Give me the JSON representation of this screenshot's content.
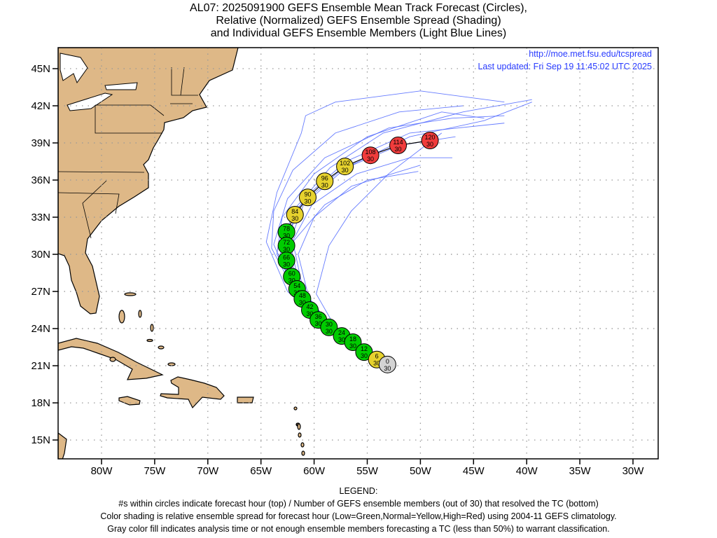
{
  "title": {
    "line1": "AL07: 2025091900 GEFS Ensemble Mean Track Forecast (Circles),",
    "line2": "Relative (Normalized) GEFS Ensemble Spread (Shading)",
    "line3": "and Individual GEFS Ensemble Members (Light Blue Lines)"
  },
  "info": {
    "url": "http://moe.met.fsu.edu/tcspread",
    "updated": "Last updated: Fri Sep 19 11:45:02 UTC 2025"
  },
  "legend": {
    "heading": "LEGEND:",
    "line1": "#s within circles indicate forecast hour (top) / Number of GEFS ensemble members (out of 30) that resolved the TC (bottom)",
    "line2": "Color shading is relative ensemble spread for forecast hour (Low=Green,Normal=Yellow,High=Red) using 2004-11 GEFS climatology.",
    "line3": "Gray color fill indicates analysis time or not enough ensemble members forecasting a TC (less than 50%) to warrant classification."
  },
  "colors": {
    "green": "#00cc00",
    "yellow": "#e6d22e",
    "red": "#f03c3c",
    "gray": "#d3d3d3",
    "member": "#4a64ff",
    "land": "#deb887"
  },
  "chart_data": {
    "type": "map-track",
    "lon_range": [
      -84.1,
      -27.6
    ],
    "lat_range": [
      13.5,
      46.7
    ],
    "x_ticks": [
      "80W",
      "75W",
      "70W",
      "65W",
      "60W",
      "55W",
      "50W",
      "45W",
      "40W",
      "35W",
      "30W"
    ],
    "x_tick_values": [
      -80,
      -75,
      -70,
      -65,
      -60,
      -55,
      -50,
      -45,
      -40,
      -35,
      -30
    ],
    "y_ticks": [
      "45N",
      "42N",
      "39N",
      "36N",
      "33N",
      "30N",
      "27N",
      "24N",
      "21N",
      "18N",
      "15N"
    ],
    "y_tick_values": [
      45,
      42,
      39,
      36,
      33,
      30,
      27,
      24,
      21,
      18,
      15
    ],
    "mean_track": [
      {
        "hour": "0",
        "members": "30",
        "lon": -53.1,
        "lat": 21.1,
        "spread": "gray"
      },
      {
        "hour": "6",
        "members": "30",
        "lon": -54.1,
        "lat": 21.5,
        "spread": "yellow"
      },
      {
        "hour": "12",
        "members": "30",
        "lon": -55.3,
        "lat": 22.1,
        "spread": "green"
      },
      {
        "hour": "18",
        "members": "30",
        "lon": -56.35,
        "lat": 22.9,
        "spread": "green"
      },
      {
        "hour": "24",
        "members": "30",
        "lon": -57.4,
        "lat": 23.4,
        "spread": "green"
      },
      {
        "hour": "30",
        "members": "30",
        "lon": -58.6,
        "lat": 24.1,
        "spread": "green"
      },
      {
        "hour": "36",
        "members": "30",
        "lon": -59.6,
        "lat": 24.7,
        "spread": "green"
      },
      {
        "hour": "42",
        "members": "30",
        "lon": -60.4,
        "lat": 25.5,
        "spread": "green"
      },
      {
        "hour": "48",
        "members": "30",
        "lon": -61.1,
        "lat": 26.4,
        "spread": "green"
      },
      {
        "hour": "54",
        "members": "30",
        "lon": -61.6,
        "lat": 27.2,
        "spread": "green"
      },
      {
        "hour": "60",
        "members": "30",
        "lon": -62.1,
        "lat": 28.2,
        "spread": "green"
      },
      {
        "hour": "66",
        "members": "30",
        "lon": -62.6,
        "lat": 29.5,
        "spread": "green"
      },
      {
        "hour": "72",
        "members": "30",
        "lon": -62.6,
        "lat": 30.7,
        "spread": "green"
      },
      {
        "hour": "78",
        "members": "30",
        "lon": -62.6,
        "lat": 31.8,
        "spread": "green"
      },
      {
        "hour": "84",
        "members": "30",
        "lon": -61.8,
        "lat": 33.2,
        "spread": "yellow"
      },
      {
        "hour": "90",
        "members": "30",
        "lon": -60.6,
        "lat": 34.6,
        "spread": "yellow"
      },
      {
        "hour": "96",
        "members": "30",
        "lon": -59.0,
        "lat": 35.9,
        "spread": "yellow"
      },
      {
        "hour": "102",
        "members": "30",
        "lon": -57.1,
        "lat": 37.1,
        "spread": "yellow"
      },
      {
        "hour": "108",
        "members": "30",
        "lon": -54.7,
        "lat": 38.0,
        "spread": "red"
      },
      {
        "hour": "114",
        "members": "30",
        "lon": -52.1,
        "lat": 38.8,
        "spread": "red"
      },
      {
        "hour": "120",
        "members": "30",
        "lon": -49.1,
        "lat": 39.2,
        "spread": "red"
      }
    ],
    "members": [
      [
        [
          -53.1,
          21.1
        ],
        [
          -58.5,
          24.0
        ],
        [
          -61.5,
          27.0
        ],
        [
          -63.5,
          30.0
        ],
        [
          -63.0,
          33.0
        ],
        [
          -60.0,
          36.5
        ],
        [
          -55.0,
          39.5
        ],
        [
          -48.0,
          41.5
        ],
        [
          -44.0,
          41.0
        ]
      ],
      [
        [
          -53.1,
          21.1
        ],
        [
          -58.8,
          24.3
        ],
        [
          -61.8,
          27.5
        ],
        [
          -62.5,
          30.5
        ],
        [
          -61.0,
          34.0
        ],
        [
          -57.0,
          37.0
        ],
        [
          -51.0,
          39.5
        ],
        [
          -44.0,
          40.8
        ],
        [
          -39.5,
          42.3
        ]
      ],
      [
        [
          -53.1,
          21.1
        ],
        [
          -58.2,
          24.0
        ],
        [
          -61.0,
          27.0
        ],
        [
          -62.0,
          31.0
        ],
        [
          -59.0,
          34.0
        ],
        [
          -55.0,
          36.0
        ],
        [
          -50.2,
          36.7
        ]
      ],
      [
        [
          -53.1,
          21.1
        ],
        [
          -59.0,
          24.3
        ],
        [
          -62.5,
          27.0
        ],
        [
          -64.5,
          31.0
        ],
        [
          -63.5,
          35.0
        ],
        [
          -61.2,
          39.8
        ],
        [
          -60.8,
          41.2
        ],
        [
          -58.0,
          42.3
        ],
        [
          -50.0,
          43.2
        ],
        [
          -42.1,
          42.3
        ]
      ],
      [
        [
          -53.1,
          21.1
        ],
        [
          -58.4,
          24.1
        ],
        [
          -61.3,
          27.2
        ],
        [
          -62.8,
          30.2
        ],
        [
          -61.5,
          33.8
        ],
        [
          -57.5,
          36.8
        ],
        [
          -52.0,
          38.8
        ],
        [
          -46.7,
          39.5
        ]
      ],
      [
        [
          -53.1,
          21.1
        ],
        [
          -58.7,
          24.2
        ],
        [
          -62.0,
          27.3
        ],
        [
          -63.8,
          30.8
        ],
        [
          -62.5,
          34.5
        ],
        [
          -59.0,
          37.8
        ],
        [
          -53.0,
          40.2
        ],
        [
          -47.0,
          41.0
        ],
        [
          -42.1,
          41.2
        ]
      ],
      [
        [
          -53.1,
          21.1
        ],
        [
          -58.0,
          23.8
        ],
        [
          -60.5,
          26.5
        ],
        [
          -61.5,
          30.0
        ],
        [
          -60.0,
          33.0
        ],
        [
          -56.5,
          35.5
        ],
        [
          -50.0,
          37.2
        ]
      ],
      [
        [
          -53.1,
          21.1
        ],
        [
          -58.6,
          24.0
        ],
        [
          -61.6,
          27.1
        ],
        [
          -63.2,
          30.0
        ],
        [
          -62.0,
          33.5
        ],
        [
          -58.5,
          37.0
        ],
        [
          -53.5,
          39.8
        ],
        [
          -46.0,
          41.5
        ],
        [
          -39.5,
          42.5
        ]
      ],
      [
        [
          -53.1,
          21.1
        ],
        [
          -58.3,
          24.1
        ],
        [
          -61.2,
          27.0
        ],
        [
          -62.8,
          31.0
        ],
        [
          -61.0,
          34.5
        ],
        [
          -57.0,
          37.5
        ],
        [
          -51.0,
          39.8
        ],
        [
          -42.1,
          40.6
        ]
      ],
      [
        [
          -53.1,
          21.1
        ],
        [
          -57.8,
          23.8
        ],
        [
          -59.8,
          26.8
        ],
        [
          -58.6,
          30.7
        ],
        [
          -56.5,
          33.5
        ],
        [
          -53.0,
          36.5
        ],
        [
          -48.0,
          39.8
        ]
      ],
      [
        [
          -53.1,
          21.1
        ],
        [
          -58.9,
          24.4
        ],
        [
          -62.2,
          27.6
        ],
        [
          -64.0,
          30.5
        ],
        [
          -63.8,
          33.5
        ],
        [
          -62.0,
          36.8
        ],
        [
          -58.0,
          39.8
        ],
        [
          -52.0,
          41.5
        ],
        [
          -46.0,
          42.0
        ]
      ],
      [
        [
          -53.1,
          21.1
        ],
        [
          -58.5,
          24.2
        ],
        [
          -61.4,
          27.4
        ],
        [
          -62.2,
          30.8
        ],
        [
          -60.2,
          34.0
        ],
        [
          -56.0,
          36.5
        ],
        [
          -51.0,
          37.8
        ],
        [
          -47.0,
          37.8
        ]
      ]
    ]
  }
}
